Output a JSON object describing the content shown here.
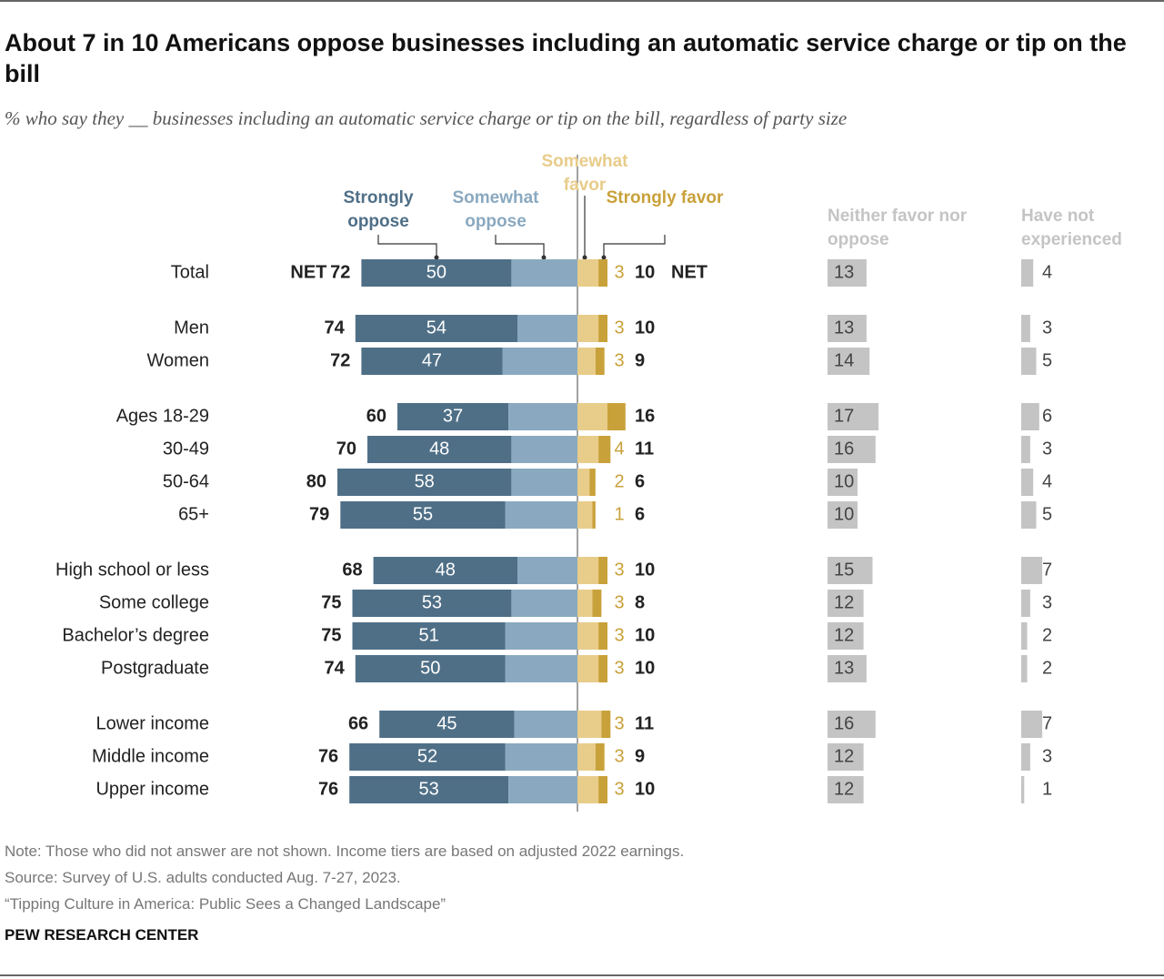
{
  "title": "About 7 in 10 Americans oppose businesses including an automatic service charge or tip on the bill",
  "subtitle": "% who say they __ businesses including an automatic service charge or tip on the bill, regardless of party size",
  "note": "Note: Those who did not answer are not shown. Income tiers are based on adjusted 2022 earnings.",
  "source": "Source: Survey of U.S. adults conducted Aug. 7-27, 2023.",
  "report": "“Tipping Culture in America: Public Sees a Changed Landscape”",
  "footer": "PEW RESEARCH CENTER",
  "chart_data": {
    "type": "diverging_bar",
    "categories": [
      "Total",
      "Men",
      "Women",
      "Ages 18-29",
      "30-49",
      "50-64",
      "65+",
      "High school or less",
      "Some college",
      "Bachelor’s degree",
      "Postgraduate",
      "Lower income",
      "Middle income",
      "Upper income"
    ],
    "net_label": "NET",
    "series": [
      {
        "name": "Strongly oppose",
        "color": "#4f6f87",
        "values": [
          50,
          54,
          47,
          37,
          48,
          58,
          55,
          48,
          53,
          51,
          50,
          45,
          52,
          53
        ]
      },
      {
        "name": "Somewhat oppose",
        "color": "#8aa9c0",
        "values": [
          22,
          20,
          25,
          23,
          22,
          22,
          24,
          20,
          22,
          24,
          24,
          21,
          24,
          23
        ]
      },
      {
        "name": "Somewhat favor",
        "color": "#e8cc8a",
        "values": [
          7,
          7,
          6,
          10,
          7,
          4,
          5,
          7,
          5,
          7,
          7,
          8,
          6,
          7
        ]
      },
      {
        "name": "Strongly favor",
        "color": "#c9a13a",
        "values": [
          3,
          3,
          3,
          6,
          4,
          2,
          1,
          3,
          3,
          3,
          3,
          3,
          3,
          3
        ]
      }
    ],
    "net_oppose": [
      72,
      74,
      72,
      60,
      70,
      80,
      79,
      68,
      75,
      75,
      74,
      66,
      76,
      76
    ],
    "net_favor": [
      10,
      10,
      9,
      16,
      11,
      6,
      6,
      10,
      8,
      10,
      10,
      11,
      9,
      10
    ],
    "side_series": [
      {
        "name": "Neither favor nor oppose",
        "color": "#c4c4c4",
        "values": [
          13,
          13,
          14,
          17,
          16,
          10,
          10,
          15,
          12,
          12,
          13,
          16,
          12,
          12
        ]
      },
      {
        "name": "Have not experienced",
        "color": "#c4c4c4",
        "values": [
          4,
          3,
          5,
          6,
          3,
          4,
          5,
          7,
          3,
          2,
          2,
          7,
          3,
          1
        ]
      }
    ]
  }
}
